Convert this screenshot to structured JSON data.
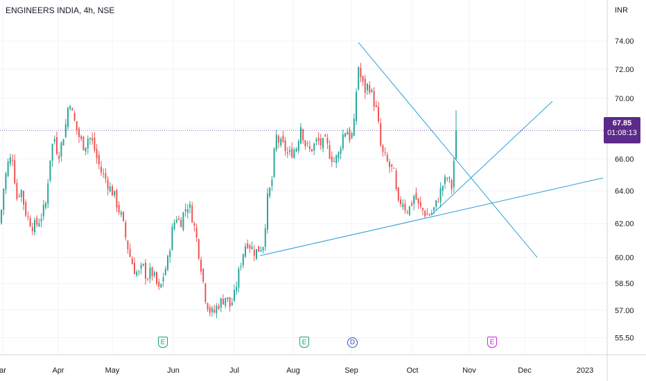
{
  "header": {
    "title": "ENGINEERS INDIA, 4h, NSE"
  },
  "price_axis": {
    "unit": "INR"
  },
  "last_price": {
    "price": "67.85",
    "countdown": "01:08:13"
  },
  "colors": {
    "up": "#26a69a",
    "down": "#ef5350",
    "trend": "#2a9fd6",
    "badge": "#5b2a8a"
  },
  "events": [
    {
      "type": "earnings",
      "label": "E",
      "month": "Jun"
    },
    {
      "type": "earnings",
      "label": "E",
      "month": "Aug"
    },
    {
      "type": "dividend",
      "label": "D",
      "month": "Sep"
    },
    {
      "type": "earnings-upcoming",
      "label": "E",
      "month": "Nov"
    }
  ],
  "chart_data": {
    "type": "candlestick",
    "title": "ENGINEERS INDIA, 4h, NSE",
    "y_unit": "INR",
    "y_ticks": [
      "55.50",
      "57.00",
      "58.50",
      "60.00",
      "62.00",
      "64.00",
      "66.00",
      "68.00",
      "70.00",
      "72.00",
      "74.00"
    ],
    "y_scale": "log",
    "ylim": [
      54.6,
      77.0
    ],
    "x_ticks": [
      "ar",
      "Apr",
      "May",
      "Jun",
      "Jul",
      "Aug",
      "Sep",
      "Oct",
      "Nov",
      "Dec",
      "2023"
    ],
    "grid": true,
    "series": [
      {
        "name": "price",
        "path_close": [
          [
            0,
            62.0
          ],
          [
            6,
            64.5
          ],
          [
            12,
            65.8
          ],
          [
            18,
            66.2
          ],
          [
            24,
            63.5
          ],
          [
            30,
            64.2
          ],
          [
            36,
            62.8
          ],
          [
            42,
            62.2
          ],
          [
            48,
            61.8
          ],
          [
            54,
            62.0
          ],
          [
            60,
            62.5
          ],
          [
            66,
            63.2
          ],
          [
            72,
            66.0
          ],
          [
            78,
            67.5
          ],
          [
            84,
            66.2
          ],
          [
            90,
            67.2
          ],
          [
            96,
            68.5
          ],
          [
            100,
            70.2
          ],
          [
            104,
            69.0
          ],
          [
            110,
            68.0
          ],
          [
            116,
            67.2
          ],
          [
            122,
            66.8
          ],
          [
            128,
            67.5
          ],
          [
            134,
            67.0
          ],
          [
            140,
            66.0
          ],
          [
            146,
            65.2
          ],
          [
            152,
            64.8
          ],
          [
            158,
            64.2
          ],
          [
            164,
            63.8
          ],
          [
            170,
            63.0
          ],
          [
            176,
            62.3
          ],
          [
            182,
            61.0
          ],
          [
            188,
            60.0
          ],
          [
            194,
            59.3
          ],
          [
            200,
            59.0
          ],
          [
            206,
            59.5
          ],
          [
            212,
            58.8
          ],
          [
            218,
            59.2
          ],
          [
            224,
            58.7
          ],
          [
            230,
            58.0
          ],
          [
            236,
            59.0
          ],
          [
            242,
            59.8
          ],
          [
            248,
            61.5
          ],
          [
            254,
            62.5
          ],
          [
            260,
            62.0
          ],
          [
            266,
            62.8
          ],
          [
            272,
            63.2
          ],
          [
            278,
            62.3
          ],
          [
            284,
            61.0
          ],
          [
            290,
            59.5
          ],
          [
            296,
            57.8
          ],
          [
            302,
            57.0
          ],
          [
            308,
            56.8
          ],
          [
            314,
            57.3
          ],
          [
            320,
            57.5
          ],
          [
            326,
            57.8
          ],
          [
            332,
            57.2
          ],
          [
            338,
            57.8
          ],
          [
            344,
            59.0
          ],
          [
            350,
            60.2
          ],
          [
            356,
            61.0
          ],
          [
            362,
            60.6
          ],
          [
            368,
            60.3
          ],
          [
            374,
            60.5
          ],
          [
            380,
            60.8
          ],
          [
            386,
            63.5
          ],
          [
            392,
            64.5
          ],
          [
            398,
            67.5
          ],
          [
            404,
            67.0
          ],
          [
            410,
            66.8
          ],
          [
            416,
            66.2
          ],
          [
            422,
            66.5
          ],
          [
            428,
            66.8
          ],
          [
            434,
            68.2
          ],
          [
            440,
            67.0
          ],
          [
            446,
            66.5
          ],
          [
            452,
            66.8
          ],
          [
            458,
            67.2
          ],
          [
            464,
            66.9
          ],
          [
            470,
            67.1
          ],
          [
            476,
            66.3
          ],
          [
            482,
            65.9
          ],
          [
            488,
            66.2
          ],
          [
            494,
            67.5
          ],
          [
            500,
            68.0
          ],
          [
            506,
            67.2
          ],
          [
            512,
            68.5
          ],
          [
            516,
            72.5
          ],
          [
            520,
            71.5
          ],
          [
            526,
            70.5
          ],
          [
            532,
            71.0
          ],
          [
            538,
            70.0
          ],
          [
            544,
            69.0
          ],
          [
            550,
            66.5
          ],
          [
            556,
            66.0
          ],
          [
            562,
            65.5
          ],
          [
            568,
            65.2
          ],
          [
            574,
            63.0
          ],
          [
            580,
            63.5
          ],
          [
            586,
            62.8
          ],
          [
            592,
            63.0
          ],
          [
            598,
            63.8
          ],
          [
            604,
            63.0
          ],
          [
            610,
            62.8
          ],
          [
            616,
            62.5
          ],
          [
            622,
            62.6
          ],
          [
            628,
            63.0
          ],
          [
            634,
            63.8
          ],
          [
            640,
            64.5
          ],
          [
            646,
            64.8
          ],
          [
            652,
            64.2
          ],
          [
            658,
            67.85
          ]
        ]
      }
    ],
    "trendlines": [
      {
        "from": [
          "Jul",
          60.1
        ],
        "to": [
          "Dec",
          64.8
        ]
      },
      {
        "from": [
          "Sep",
          73.9
        ],
        "to": [
          "Nov",
          60.0
        ]
      },
      {
        "from": [
          "Oct",
          62.5
        ],
        "to": [
          "Dec",
          69.8
        ]
      }
    ],
    "last_close": 67.85
  }
}
